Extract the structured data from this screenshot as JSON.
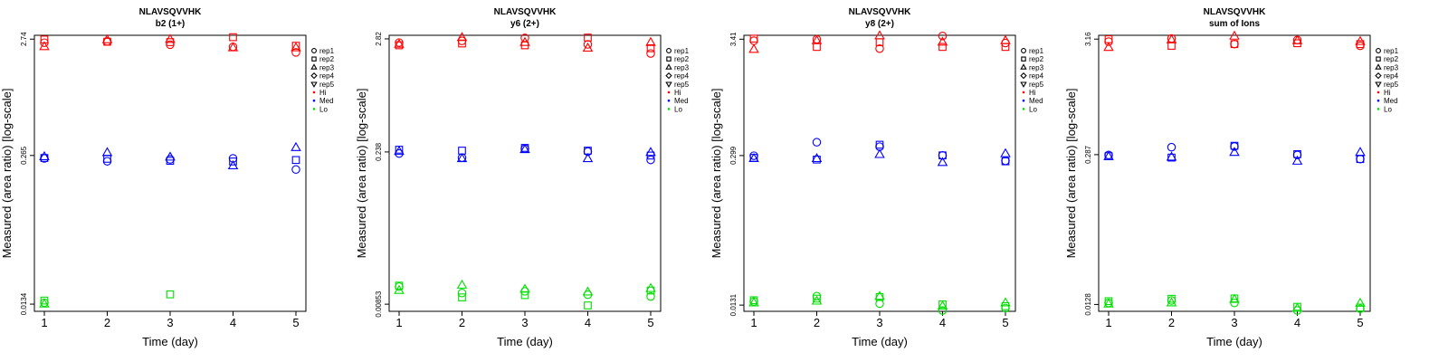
{
  "chart_data": [
    {
      "type": "scatter",
      "title": "NLAVSQVVHK",
      "subtitle": "b2 (1+)",
      "xlabel": "Time (day)",
      "ylabel": "Measured (area ratio) [log-scale]",
      "scale": "log",
      "x_ticks": [
        "1",
        "2",
        "3",
        "4",
        "5"
      ],
      "y_ticks": [
        {
          "value": 0.0134,
          "label": "0.0134"
        },
        {
          "value": 0.265,
          "label": "0.265"
        },
        {
          "value": 2.74,
          "label": "2.74"
        }
      ],
      "ylim": [
        0.0116,
        2.96
      ],
      "series": [
        {
          "level": "Hi",
          "replicate": "rep1",
          "x": [
            1,
            2,
            3,
            4,
            5
          ],
          "y": [
            2.55,
            2.62,
            2.45,
            2.35,
            2.1
          ]
        },
        {
          "level": "Hi",
          "replicate": "rep2",
          "x": [
            1,
            2,
            3,
            4,
            5
          ],
          "y": [
            2.72,
            2.6,
            2.58,
            2.85,
            2.4
          ]
        },
        {
          "level": "Hi",
          "replicate": "rep3",
          "x": [
            1,
            2,
            3,
            4,
            5
          ],
          "y": [
            2.35,
            2.7,
            2.72,
            2.3,
            2.3
          ]
        },
        {
          "level": "Med",
          "replicate": "rep1",
          "x": [
            1,
            2,
            3,
            4,
            5
          ],
          "y": [
            0.25,
            0.236,
            0.245,
            0.25,
            0.2
          ]
        },
        {
          "level": "Med",
          "replicate": "rep2",
          "x": [
            1,
            2,
            3,
            4,
            5
          ],
          "y": [
            0.252,
            0.248,
            0.238,
            0.235,
            0.242
          ]
        },
        {
          "level": "Med",
          "replicate": "rep3",
          "x": [
            1,
            2,
            3,
            4,
            5
          ],
          "y": [
            0.258,
            0.28,
            0.256,
            0.215,
            0.31
          ]
        },
        {
          "level": "Lo",
          "replicate": "rep1",
          "x": [
            1
          ],
          "y": [
            0.0138
          ]
        },
        {
          "level": "Lo",
          "replicate": "rep2",
          "x": [
            1,
            3
          ],
          "y": [
            0.0144,
            0.0163
          ]
        },
        {
          "level": "Lo",
          "replicate": "rep3",
          "x": [
            1
          ],
          "y": [
            0.0134
          ]
        }
      ]
    },
    {
      "type": "scatter",
      "title": "NLAVSQVVHK",
      "subtitle": "y6 (2+)",
      "xlabel": "Time (day)",
      "ylabel": "Measured (area ratio) [log-scale]",
      "scale": "log",
      "x_ticks": [
        "1",
        "2",
        "3",
        "4",
        "5"
      ],
      "y_ticks": [
        {
          "value": 0.00853,
          "label": "0.00853"
        },
        {
          "value": 0.238,
          "label": "0.238"
        },
        {
          "value": 2.82,
          "label": "2.82"
        }
      ],
      "ylim": [
        0.0073,
        3.05
      ],
      "series": [
        {
          "level": "Hi",
          "replicate": "rep1",
          "x": [
            1,
            2,
            3,
            4,
            5
          ],
          "y": [
            2.6,
            2.7,
            2.88,
            2.5,
            2.05
          ]
        },
        {
          "level": "Hi",
          "replicate": "rep2",
          "x": [
            1,
            2,
            3,
            4,
            5
          ],
          "y": [
            2.45,
            2.55,
            2.45,
            2.9,
            2.3
          ]
        },
        {
          "level": "Hi",
          "replicate": "rep3",
          "x": [
            1,
            2,
            3,
            4,
            5
          ],
          "y": [
            2.5,
            2.9,
            2.6,
            2.3,
            2.6
          ]
        },
        {
          "level": "Med",
          "replicate": "rep1",
          "x": [
            1,
            2,
            3,
            4,
            5
          ],
          "y": [
            0.23,
            0.21,
            0.255,
            0.24,
            0.2
          ]
        },
        {
          "level": "Med",
          "replicate": "rep2",
          "x": [
            1,
            2,
            3,
            4,
            5
          ],
          "y": [
            0.25,
            0.245,
            0.26,
            0.245,
            0.22
          ]
        },
        {
          "level": "Med",
          "replicate": "rep3",
          "x": [
            1,
            2,
            3,
            4,
            5
          ],
          "y": [
            0.24,
            0.205,
            0.25,
            0.205,
            0.235
          ]
        },
        {
          "level": "Lo",
          "replicate": "rep1",
          "x": [
            1,
            2,
            3,
            4,
            5
          ],
          "y": [
            0.0125,
            0.0109,
            0.0113,
            0.0105,
            0.0101
          ]
        },
        {
          "level": "Lo",
          "replicate": "rep2",
          "x": [
            1,
            2,
            3,
            4,
            5
          ],
          "y": [
            0.0128,
            0.0099,
            0.0104,
            0.0083,
            0.0115
          ]
        },
        {
          "level": "Lo",
          "replicate": "rep3",
          "x": [
            1,
            2,
            3,
            4,
            5
          ],
          "y": [
            0.0115,
            0.0129,
            0.0118,
            0.0111,
            0.012
          ]
        }
      ]
    },
    {
      "type": "scatter",
      "title": "NLAVSQVVHK",
      "subtitle": "y8 (2+)",
      "xlabel": "Time (day)",
      "ylabel": "Measured (area ratio) [log-scale]",
      "scale": "log",
      "x_ticks": [
        "1",
        "2",
        "3",
        "4",
        "5"
      ],
      "y_ticks": [
        {
          "value": 0.0131,
          "label": "0.0131"
        },
        {
          "value": 0.299,
          "label": "0.299"
        },
        {
          "value": 3.41,
          "label": "3.41"
        }
      ],
      "ylim": [
        0.0115,
        3.7
      ],
      "series": [
        {
          "level": "Hi",
          "replicate": "rep1",
          "x": [
            1,
            2,
            3,
            4,
            5
          ],
          "y": [
            3.3,
            3.4,
            2.8,
            3.65,
            3.15
          ]
        },
        {
          "level": "Hi",
          "replicate": "rep2",
          "x": [
            1,
            2,
            3,
            4,
            5
          ],
          "y": [
            3.45,
            2.9,
            3.2,
            2.9,
            2.9
          ]
        },
        {
          "level": "Hi",
          "replicate": "rep3",
          "x": [
            1,
            2,
            3,
            4,
            5
          ],
          "y": [
            2.75,
            3.3,
            3.65,
            3.2,
            3.3
          ]
        },
        {
          "level": "Med",
          "replicate": "rep1",
          "x": [
            1,
            2,
            3,
            4,
            5
          ],
          "y": [
            0.298,
            0.395,
            0.36,
            0.3,
            0.268
          ]
        },
        {
          "level": "Med",
          "replicate": "rep2",
          "x": [
            1,
            2,
            3,
            4,
            5
          ],
          "y": [
            0.285,
            0.275,
            0.375,
            0.3,
            0.265
          ]
        },
        {
          "level": "Med",
          "replicate": "rep3",
          "x": [
            1,
            2,
            3,
            4,
            5
          ],
          "y": [
            0.28,
            0.28,
            0.305,
            0.258,
            0.31
          ]
        },
        {
          "level": "Lo",
          "replicate": "rep1",
          "x": [
            1,
            2,
            3,
            4,
            5
          ],
          "y": [
            0.0141,
            0.0158,
            0.0135,
            0.0117,
            0.0123
          ]
        },
        {
          "level": "Lo",
          "replicate": "rep2",
          "x": [
            1,
            2,
            3,
            4,
            5
          ],
          "y": [
            0.0145,
            0.015,
            0.0155,
            0.0133,
            0.0128
          ]
        },
        {
          "level": "Lo",
          "replicate": "rep3",
          "x": [
            1,
            2,
            3,
            4,
            5
          ],
          "y": [
            0.0137,
            0.0142,
            0.0157,
            0.0128,
            0.0137
          ]
        }
      ]
    },
    {
      "type": "scatter",
      "title": "NLAVSQVVHK",
      "subtitle": "sum of Ions",
      "xlabel": "Time (day)",
      "ylabel": "Measured (area ratio) [log-scale]",
      "scale": "log",
      "x_ticks": [
        "1",
        "2",
        "3",
        "4",
        "5"
      ],
      "y_ticks": [
        {
          "value": 0.0128,
          "label": "0.0128"
        },
        {
          "value": 0.287,
          "label": "0.287"
        },
        {
          "value": 3.16,
          "label": "3.16"
        }
      ],
      "ylim": [
        0.0111,
        3.42
      ],
      "series": [
        {
          "level": "Hi",
          "replicate": "rep1",
          "x": [
            1,
            2,
            3,
            4,
            5
          ],
          "y": [
            3.0,
            3.2,
            2.85,
            3.1,
            2.75
          ]
        },
        {
          "level": "Hi",
          "replicate": "rep2",
          "x": [
            1,
            2,
            3,
            4,
            5
          ],
          "y": [
            3.15,
            2.75,
            2.85,
            2.9,
            2.85
          ]
        },
        {
          "level": "Hi",
          "replicate": "rep3",
          "x": [
            1,
            2,
            3,
            4,
            5
          ],
          "y": [
            2.65,
            3.1,
            3.35,
            3.05,
            3.0
          ]
        },
        {
          "level": "Med",
          "replicate": "rep1",
          "x": [
            1,
            2,
            3,
            4,
            5
          ],
          "y": [
            0.285,
            0.335,
            0.34,
            0.285,
            0.262
          ]
        },
        {
          "level": "Med",
          "replicate": "rep2",
          "x": [
            1,
            2,
            3,
            4,
            5
          ],
          "y": [
            0.278,
            0.27,
            0.345,
            0.29,
            0.262
          ]
        },
        {
          "level": "Med",
          "replicate": "rep3",
          "x": [
            1,
            2,
            3,
            4,
            5
          ],
          "y": [
            0.275,
            0.272,
            0.3,
            0.25,
            0.3
          ]
        },
        {
          "level": "Lo",
          "replicate": "rep1",
          "x": [
            1,
            2,
            3,
            4,
            5
          ],
          "y": [
            0.0132,
            0.0139,
            0.0132,
            0.0113,
            0.0117
          ]
        },
        {
          "level": "Lo",
          "replicate": "rep2",
          "x": [
            1,
            2,
            3,
            4,
            5
          ],
          "y": [
            0.0137,
            0.0144,
            0.0145,
            0.0122,
            0.012
          ]
        },
        {
          "level": "Lo",
          "replicate": "rep3",
          "x": [
            1,
            2,
            3,
            4,
            5
          ],
          "y": [
            0.0129,
            0.0132,
            0.0142,
            0.0118,
            0.0131
          ]
        }
      ]
    }
  ],
  "legend": {
    "position": "right",
    "shape_entries": [
      {
        "label": "rep1",
        "symbol": "circle"
      },
      {
        "label": "rep2",
        "symbol": "square"
      },
      {
        "label": "rep3",
        "symbol": "triangle-up"
      },
      {
        "label": "rep4",
        "symbol": "diamond"
      },
      {
        "label": "rep5",
        "symbol": "triangle-down"
      }
    ],
    "color_entries": [
      {
        "label": "Hi",
        "color": "#ff0000"
      },
      {
        "label": "Med",
        "color": "#0000ff"
      },
      {
        "label": "Lo",
        "color": "#00dd00"
      }
    ]
  }
}
